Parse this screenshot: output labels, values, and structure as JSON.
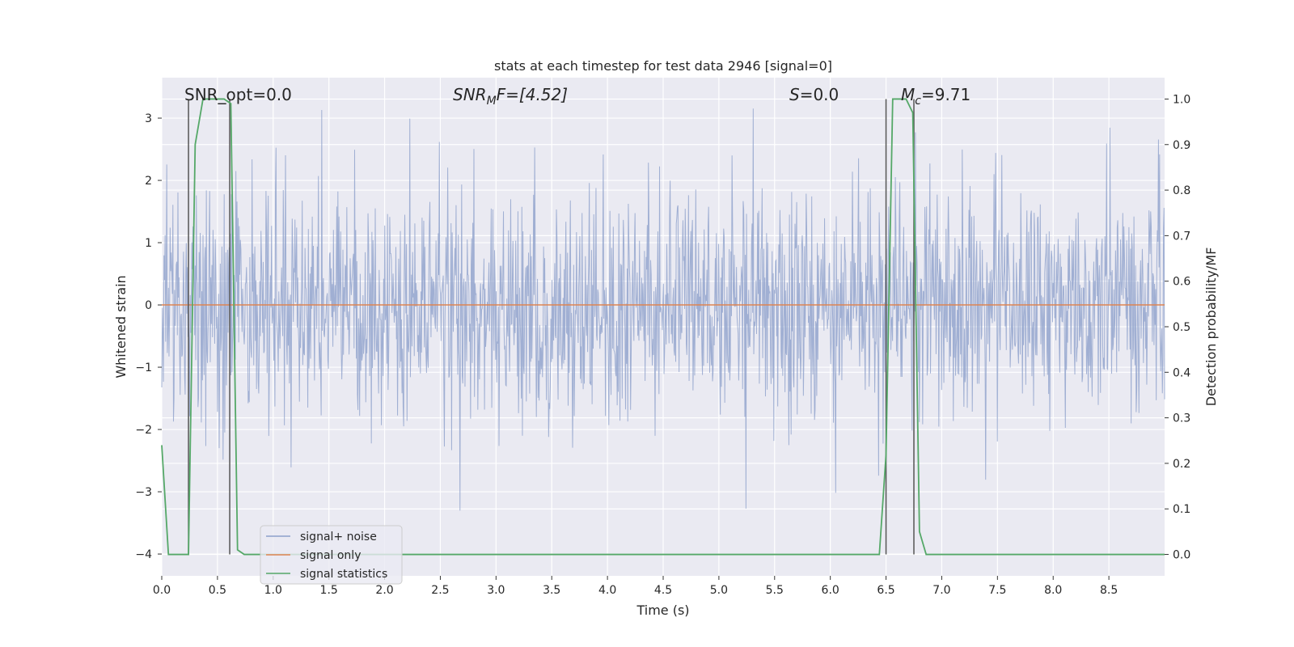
{
  "chart_data": {
    "type": "line",
    "title": "stats at each timestep for test data 2946 [signal=0]",
    "xlabel": "Time (s)",
    "ylabel": "Whitened strain",
    "y2label": "Detection probability/MF",
    "xlim": [
      0.0,
      9.0
    ],
    "ylim": [
      -4.35,
      3.65
    ],
    "y2lim": [
      -0.047,
      1.047
    ],
    "grid": true,
    "legend_position": "lower-left",
    "x_ticks": [
      "0.0",
      "0.5",
      "1.0",
      "1.5",
      "2.0",
      "2.5",
      "3.0",
      "3.5",
      "4.0",
      "4.5",
      "5.0",
      "5.5",
      "6.0",
      "6.5",
      "7.0",
      "7.5",
      "8.0",
      "8.5"
    ],
    "y_ticks": [
      "3",
      "2",
      "1",
      "0",
      "−1",
      "−2",
      "−3",
      "−4"
    ],
    "y2_ticks": [
      "1.0",
      "0.9",
      "0.8",
      "0.7",
      "0.6",
      "0.5",
      "0.4",
      "0.3",
      "0.2",
      "0.1",
      "0.0"
    ],
    "annotations": {
      "snr_opt": "SNR_opt=0.0",
      "snr_mf_sym": "SNR",
      "snr_mf_sub": "M",
      "snr_mf_rest": "F=[4.52]",
      "s_sym": "S",
      "s_val": "=0.0",
      "mc_sym": "M",
      "mc_sub": "c",
      "mc_val": "=9.71"
    },
    "series": [
      {
        "name": "signal+ noise",
        "color": "#8da0cb",
        "description": "whitened noisy strain, approx. Gaussian with std ~1, range about -3.6 to 3.3",
        "noise_seed": 2946,
        "noise_std": 0.95,
        "noise_count": 1800
      },
      {
        "name": "signal only",
        "color": "#dd8452",
        "x": [
          0.0,
          9.0
        ],
        "y": [
          0.0,
          0.0
        ]
      },
      {
        "name": "signal statistics",
        "color": "#55a868",
        "axis": "right",
        "x": [
          0.0,
          0.06,
          0.24,
          0.3,
          0.37,
          0.44,
          0.51,
          0.56,
          0.62,
          0.68,
          0.74,
          6.44,
          6.5,
          6.56,
          6.62,
          6.68,
          6.74,
          6.8,
          6.86,
          9.0
        ],
        "y": [
          0.24,
          0.0,
          0.0,
          0.9,
          1.0,
          1.0,
          1.0,
          1.0,
          0.99,
          0.01,
          0.0,
          0.0,
          0.22,
          1.0,
          1.0,
          1.0,
          0.97,
          0.05,
          0.0,
          0.0
        ]
      }
    ],
    "vertical_lines_x": [
      0.24,
      0.61,
      6.5,
      6.75
    ],
    "colors": {
      "axes_bg": "#eaeaf2",
      "grid": "#ffffff",
      "vline": "#555555",
      "text": "#262626"
    }
  }
}
